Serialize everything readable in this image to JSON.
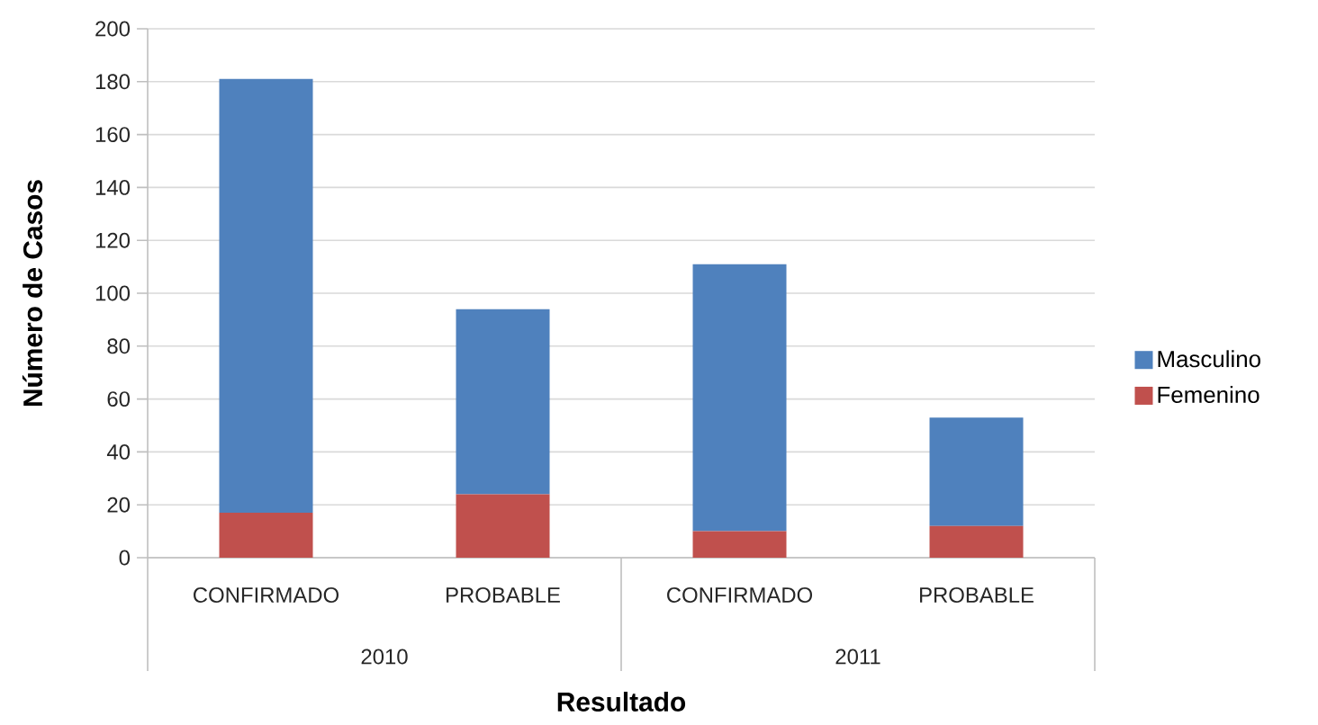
{
  "chart_data": {
    "type": "bar",
    "stacked": true,
    "xlabel": "Resultado",
    "ylabel": "Número de Casos",
    "categories": [
      "CONFIRMADO",
      "PROBABLE",
      "CONFIRMADO",
      "PROBABLE"
    ],
    "annotations": [
      "2010",
      "2011"
    ],
    "series": [
      {
        "name": "Femenino",
        "color": "#c0504d",
        "values": [
          17,
          24,
          10,
          12
        ]
      },
      {
        "name": "Masculino",
        "color": "#4f81bd",
        "values": [
          164,
          70,
          101,
          41
        ]
      }
    ],
    "ylim": [
      0,
      200
    ],
    "yticks": [
      0,
      20,
      40,
      60,
      80,
      100,
      120,
      140,
      160,
      180,
      200
    ],
    "grid": "y",
    "legend": "right"
  }
}
